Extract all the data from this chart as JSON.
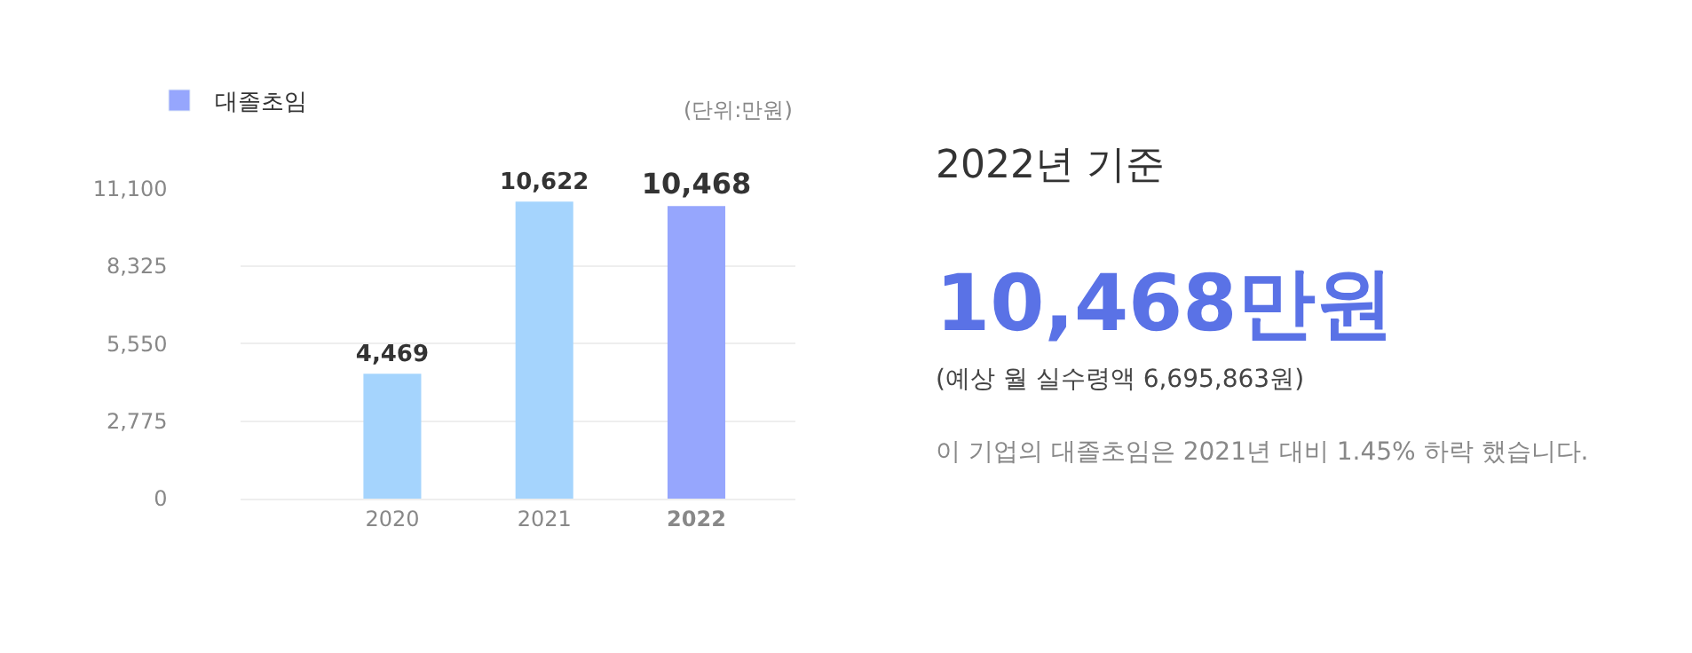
{
  "chart_data": [
    {
      "type": "bar",
      "categories": [
        "2020",
        "2021",
        "2022"
      ],
      "series": [
        {
          "name": "대졸초임",
          "color": "#96a6fd",
          "colors": [
            "#a5d4fd",
            "#a5d4fd",
            "#96a6fd"
          ],
          "values": [
            4469,
            10622,
            10468
          ],
          "value_labels": [
            "4,469",
            "10,622",
            "10,468"
          ]
        }
      ],
      "ylim": [
        0,
        11100
      ],
      "yticks": [
        0,
        {
          "value": 2775,
          "label": "2,775"
        },
        {
          "value": 5550,
          "label": "5,550"
        },
        {
          "value": 8325,
          "label": "8,325"
        },
        {
          "value": 11100,
          "label": "11,100"
        }
      ],
      "grid": "y",
      "legend": "top left",
      "annotations": [
        "(단위:만원)"
      ]
    },
    {
      "type": "other",
      "title": "2022년 기준",
      "annotations": [
        "10,468만원",
        "(예상 월 실수령액 6,695,863원)",
        "이 기업의 대졸초임은 2021년 대비 1.45% 하락 했습니다."
      ]
    }
  ]
}
